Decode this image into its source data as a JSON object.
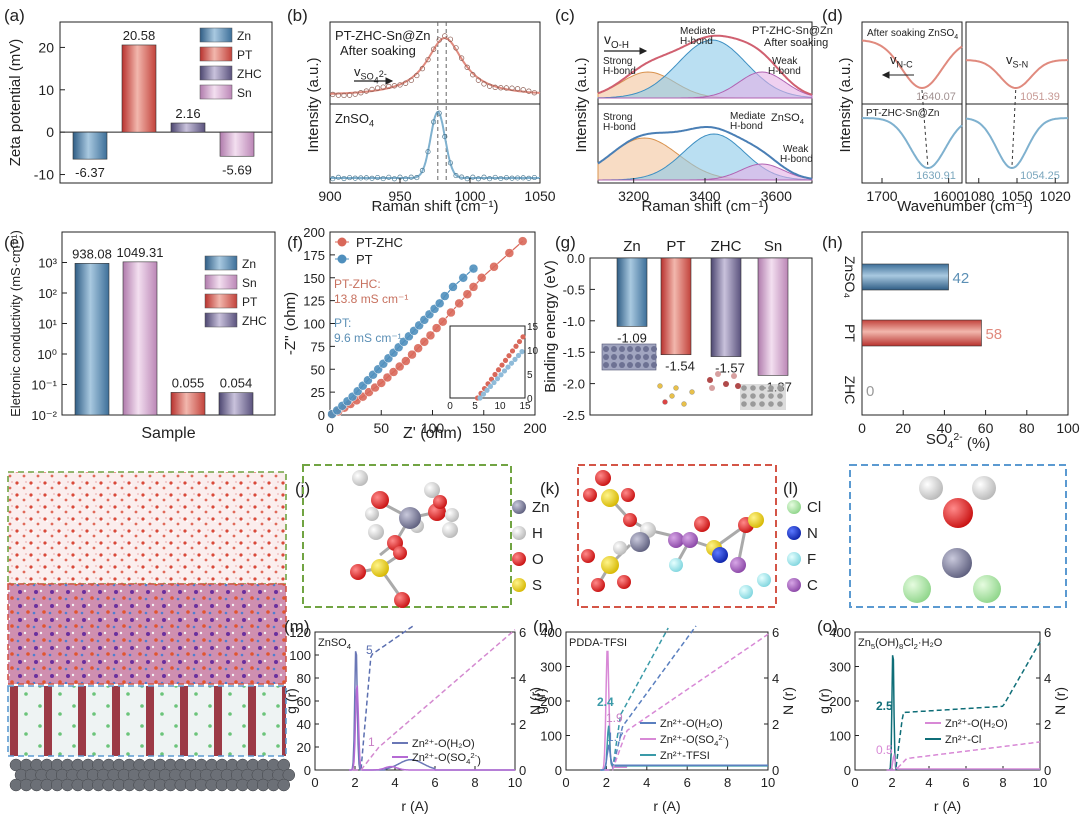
{
  "colors": {
    "zn": "#5d92bd",
    "pt": "#d9534f",
    "zhc": "#6f6591",
    "sn": "#cd93c9",
    "fit_red": "#e08a7e",
    "fit_blue": "#7fb1cf",
    "green_dash": "#71a443",
    "red_dash": "#d45547",
    "blue_dash": "#5b9ad1"
  },
  "panels": {
    "a": {
      "letter": "(a)",
      "ylabel": "Zeta potential (mV)",
      "yticks": [
        "-10",
        "0",
        "10",
        "20"
      ],
      "legend": [
        "Zn",
        "PT",
        "ZHC",
        "Sn"
      ],
      "value_labels": [
        "-6.37",
        "20.58",
        "2.16",
        "-5.69"
      ]
    },
    "b": {
      "letter": "(b)",
      "top_label_1": "PT-ZHC-Sn@Zn",
      "top_label_2": "After soaking",
      "v_main": "v",
      "v_sub": "SO",
      "v_sub2": "4",
      "v_sup": "2-",
      "bottom_label_main": "ZnSO",
      "bottom_label_sub": "4",
      "ylabel": "Intensity (a.u.)",
      "xlabel": "Raman shift (cm⁻¹)",
      "xticks": [
        "900",
        "950",
        "1000",
        "1050"
      ]
    },
    "c": {
      "letter": "(c)",
      "v_main": "v",
      "v_sub": "O-H",
      "top_title_1": "PT-ZHC-Sn@Zn",
      "top_title_2": "After soaking",
      "strong_1": "Strong",
      "strong_2": "H-bond",
      "mediate_1": "Mediate",
      "mediate_2": "H-bond",
      "weak_1": "Weak",
      "weak_2": "H-bond",
      "bottom_title_main": "ZnSO",
      "bottom_title_sub": "4",
      "ylabel": "Intensity (a.u.)",
      "xlabel": "Raman shift (cm⁻¹)",
      "xticks": [
        "3200",
        "3400",
        "3600"
      ]
    },
    "d": {
      "letter": "(d)",
      "top_label_main": "After soaking ZnSO",
      "top_label_sub": "4",
      "v_nc_main": "v",
      "v_nc_sub": "N-C",
      "v_sn_main": "v",
      "v_sn_sub": "S-N",
      "bottom_label": "PT-ZHC-Sn@Zn",
      "peaks": [
        "1640.07",
        "1051.39",
        "1630.91",
        "1054.25"
      ],
      "ylabel": "Intensity (a.u.)",
      "xlabel": "Wavenumber (cm⁻¹)",
      "xticks_left": [
        "1700",
        "1600"
      ],
      "xticks_right": [
        "1080",
        "1050",
        "1020"
      ]
    },
    "e": {
      "letter": "(e)",
      "ylabel": "Eletronic conductivity (mS·cm⁻¹)",
      "xlabel": "Sample",
      "yticks": [
        "10⁻²",
        "10⁻¹",
        "10⁰",
        "10¹",
        "10²",
        "10³"
      ],
      "legend": [
        "Zn",
        "Sn",
        "PT",
        "ZHC"
      ],
      "value_labels": [
        "938.08",
        "1049.31",
        "0.055",
        "0.054"
      ]
    },
    "f": {
      "letter": "(f)",
      "legend": [
        "PT-ZHC",
        "PT"
      ],
      "anno_ptzhc_1": "PT-ZHC:",
      "anno_ptzhc_2": "13.8 mS cm⁻¹",
      "anno_pt_1": "PT:",
      "anno_pt_2": "9.6 mS cm⁻¹",
      "ylabel": "-Z'' (ohm)",
      "xlabel": "Z' (ohm)",
      "xticks": [
        "0",
        "50",
        "100",
        "150",
        "200"
      ],
      "yticks": [
        "0",
        "25",
        "50",
        "75",
        "100",
        "125",
        "150",
        "175",
        "200"
      ],
      "inset_xticks": [
        "0",
        "5",
        "10",
        "15"
      ],
      "inset_yticks": [
        "0",
        "5",
        "10",
        "15"
      ]
    },
    "g": {
      "letter": "(g)",
      "categories": [
        "Zn",
        "PT",
        "ZHC",
        "Sn"
      ],
      "value_labels": [
        "-1.09",
        "-1.54",
        "-1.57",
        "-1.87"
      ],
      "ylabel": "Binding energy (eV)",
      "yticks": [
        "0.0",
        "-0.5",
        "-1.0",
        "-1.5",
        "-2.0",
        "-2.5"
      ]
    },
    "h": {
      "letter": "(h)",
      "categories": [
        "ZnSO₄",
        "PT",
        "ZHC"
      ],
      "value_labels": [
        "42",
        "58",
        "0"
      ],
      "xlabel_main": "SO",
      "xlabel_sub": "4",
      "xlabel_sup": "2-",
      "xlabel_unit": " (%)",
      "xticks": [
        "0",
        "20",
        "40",
        "60",
        "80",
        "100"
      ]
    },
    "i": {
      "letter": "(i)"
    },
    "j": {
      "letter": "(j)"
    },
    "k": {
      "letter": "(k)",
      "legend": [
        "Zn",
        "H",
        "O",
        "S"
      ]
    },
    "l": {
      "letter": "(l)",
      "legend": [
        "Cl",
        "N",
        "F",
        "C"
      ]
    },
    "m": {
      "letter": "(m)",
      "title_main": "ZnSO",
      "title_sub": "4",
      "yticks_left": [
        "0",
        "20",
        "40",
        "60",
        "80",
        "100",
        "120"
      ],
      "yticks_right": [
        "0",
        "2",
        "4",
        "6"
      ],
      "xticks": [
        "0",
        "2",
        "4",
        "6",
        "8",
        "10"
      ],
      "ylabel_left": "g (r)",
      "ylabel_right": "N (r)",
      "xlabel": "r (A)",
      "cn_labels": [
        "5",
        "1"
      ],
      "legend_1": "Zn²⁺-O(H₂O)",
      "legend_2_main": "Zn²⁺-O(SO",
      "legend_2_sub": "4",
      "legend_2_sup": "2-",
      "legend_2_end": ")"
    },
    "n": {
      "letter": "(n)",
      "title": "PDDA-TFSI",
      "yticks_left": [
        "0",
        "100",
        "200",
        "300",
        "400"
      ],
      "yticks_right": [
        "0",
        "2",
        "4",
        "6"
      ],
      "xticks": [
        "0",
        "2",
        "4",
        "6",
        "8",
        "10"
      ],
      "ylabel_left": "g (r)",
      "ylabel_right": "N (r)",
      "xlabel": "r (A)",
      "cn_labels": [
        "2.4",
        "1.9",
        "1.7"
      ],
      "legend_1": "Zn²⁺-O(H₂O)",
      "legend_2_main": "Zn²⁺-O(SO",
      "legend_2_sub": "4",
      "legend_2_sup": "2-",
      "legend_2_end": ")",
      "legend_3": "Zn²⁺-TFSI"
    },
    "o": {
      "letter": "(o)",
      "title_main": "Zn",
      "title_sub1": "5",
      "title_mid": "(OH)",
      "title_sub2": "8",
      "title_mid2": "Cl",
      "title_sub3": "2",
      "title_end": "·H₂O",
      "yticks_left": [
        "0",
        "100",
        "200",
        "300",
        "400"
      ],
      "yticks_right": [
        "0",
        "2",
        "4",
        "6"
      ],
      "xticks": [
        "0",
        "2",
        "4",
        "6",
        "8",
        "10"
      ],
      "ylabel_left": "g (r)",
      "ylabel_right": "N (r)",
      "xlabel": "r (A)",
      "cn_labels": [
        "2.5",
        "0.5"
      ],
      "legend_1": "Zn²⁺-O(H₂O)",
      "legend_2": "Zn²⁺-Cl"
    }
  },
  "chart_data": [
    {
      "panel": "a",
      "type": "bar",
      "categories": [
        "Zn",
        "PT",
        "ZHC",
        "Sn"
      ],
      "values": [
        -6.37,
        20.58,
        2.16,
        -5.69
      ],
      "ylabel": "Zeta potential (mV)",
      "ylim": [
        -12,
        26
      ]
    },
    {
      "panel": "e",
      "type": "bar",
      "categories": [
        "Zn",
        "Sn",
        "PT",
        "ZHC"
      ],
      "values": [
        938.08,
        1049.31,
        0.055,
        0.054
      ],
      "ylabel": "Eletronic conductivity (mS·cm⁻¹)",
      "xlabel": "Sample",
      "yscale": "log",
      "ylim": [
        0.01,
        10000
      ]
    },
    {
      "panel": "g",
      "type": "bar",
      "categories": [
        "Zn",
        "PT",
        "ZHC",
        "Sn"
      ],
      "values": [
        -1.09,
        -1.54,
        -1.57,
        -1.87
      ],
      "ylabel": "Binding energy (eV)",
      "ylim": [
        -2.5,
        0
      ]
    },
    {
      "panel": "h",
      "type": "bar",
      "orientation": "horizontal",
      "categories": [
        "ZnSO4",
        "PT",
        "ZHC"
      ],
      "values": [
        42,
        58,
        0
      ],
      "xlabel": "SO4 2- (%)",
      "xlim": [
        0,
        100
      ]
    },
    {
      "panel": "f",
      "type": "scatter",
      "xlabel": "Z' (ohm)",
      "ylabel": "-Z'' (ohm)",
      "xlim": [
        0,
        200
      ],
      "ylim": [
        0,
        200
      ],
      "series": [
        {
          "name": "PT-ZHC",
          "x": [
            2,
            8,
            14,
            20,
            26,
            32,
            38,
            44,
            50,
            56,
            62,
            68,
            74,
            80,
            86,
            92,
            98,
            104,
            110,
            118,
            126,
            134,
            140,
            148,
            160,
            175,
            188
          ],
          "y": [
            1,
            4,
            8,
            12,
            16,
            20,
            25,
            30,
            35,
            41,
            47,
            53,
            59,
            66,
            73,
            80,
            87,
            95,
            102,
            112,
            122,
            132,
            140,
            150,
            162,
            177,
            190
          ]
        },
        {
          "name": "PT",
          "x": [
            2,
            7,
            12,
            17,
            22,
            27,
            32,
            37,
            42,
            47,
            52,
            57,
            62,
            67,
            72,
            77,
            82,
            87,
            92,
            97,
            102,
            107,
            112,
            120,
            130,
            140
          ],
          "y": [
            1,
            5,
            10,
            15,
            20,
            26,
            32,
            38,
            44,
            50,
            56,
            62,
            68,
            74,
            80,
            86,
            92,
            98,
            104,
            110,
            116,
            122,
            130,
            140,
            150,
            160
          ]
        }
      ]
    }
  ]
}
